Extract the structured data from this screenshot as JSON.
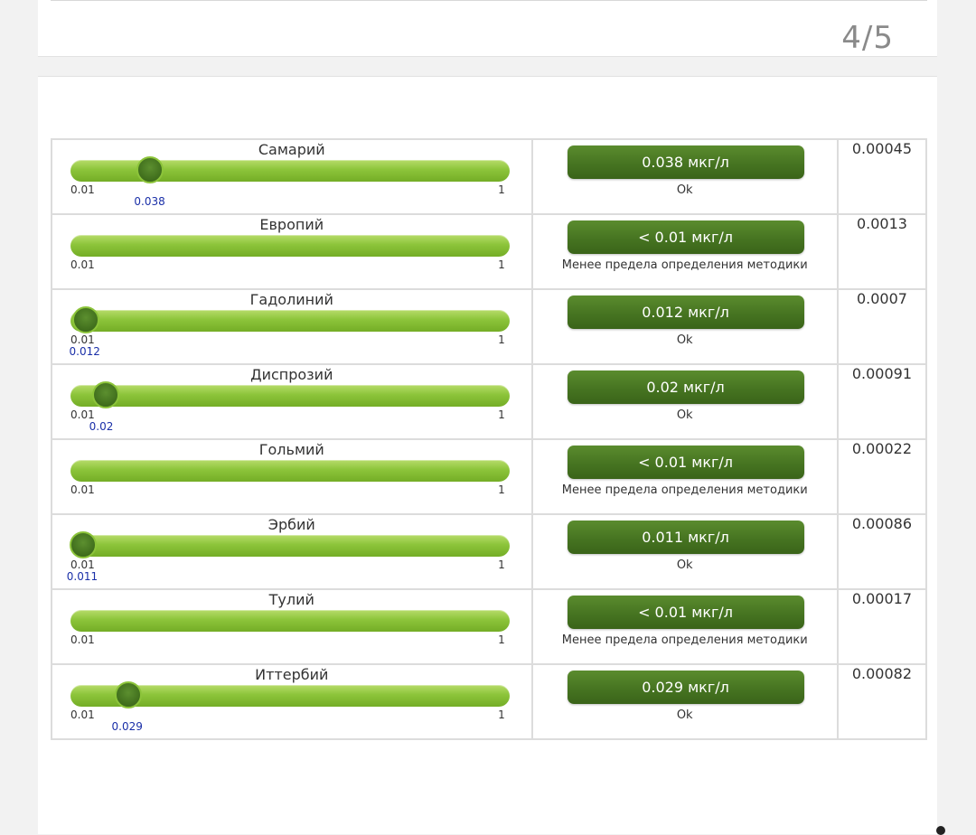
{
  "header": {
    "page_indicator": "4/5"
  },
  "scale": {
    "min_label": "0.01",
    "max_label": "1",
    "min": 0.01,
    "max": 1
  },
  "rows": [
    {
      "name": "Самарий",
      "value": 0.038,
      "value_label": "0.038",
      "result": "0.038 мкг/л",
      "status": "Ok",
      "reference": "0.00045"
    },
    {
      "name": "Европий",
      "value": null,
      "value_label": "",
      "result": "< 0.01 мкг/л",
      "status": "Менее предела определения методики",
      "reference": "0.0013"
    },
    {
      "name": "Гадолиний",
      "value": 0.012,
      "value_label": "0.012",
      "result": "0.012 мкг/л",
      "status": "Ok",
      "reference": "0.0007"
    },
    {
      "name": "Диспрозий",
      "value": 0.02,
      "value_label": "0.02",
      "result": "0.02 мкг/л",
      "status": "Ok",
      "reference": "0.00091"
    },
    {
      "name": "Гольмий",
      "value": null,
      "value_label": "",
      "result": "< 0.01 мкг/л",
      "status": "Менее предела определения методики",
      "reference": "0.00022"
    },
    {
      "name": "Эрбий",
      "value": 0.011,
      "value_label": "0.011",
      "result": "0.011 мкг/л",
      "status": "Ok",
      "reference": "0.00086"
    },
    {
      "name": "Тулий",
      "value": null,
      "value_label": "",
      "result": "< 0.01 мкг/л",
      "status": "Менее предела определения методики",
      "reference": "0.00017"
    },
    {
      "name": "Иттербий",
      "value": 0.029,
      "value_label": "0.029",
      "result": "0.029 мкг/л",
      "status": "Ok",
      "reference": "0.00082"
    }
  ]
}
